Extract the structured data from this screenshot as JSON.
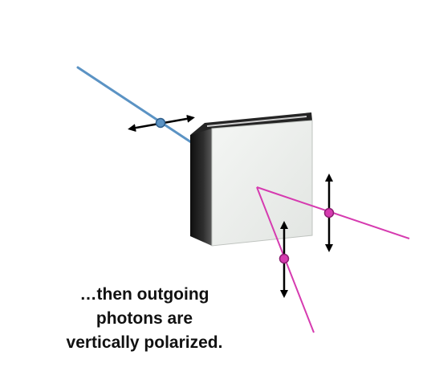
{
  "caption": {
    "line1": "…then outgoing",
    "line2": "photons are",
    "line3": "vertically polarized."
  },
  "colors": {
    "incoming_beam": "#5b93c4",
    "outgoing_beam": "#d63bb0",
    "crystal_face": "#eef0ee",
    "crystal_side": "#1e1e1e",
    "crystal_top": "#2a2a2a",
    "arrow": "#000000",
    "caption_text": "#111111"
  },
  "icons": {
    "incoming_polarization": "double-headed-horizontal-arrow",
    "outgoing_polarization": "double-headed-vertical-arrow"
  }
}
